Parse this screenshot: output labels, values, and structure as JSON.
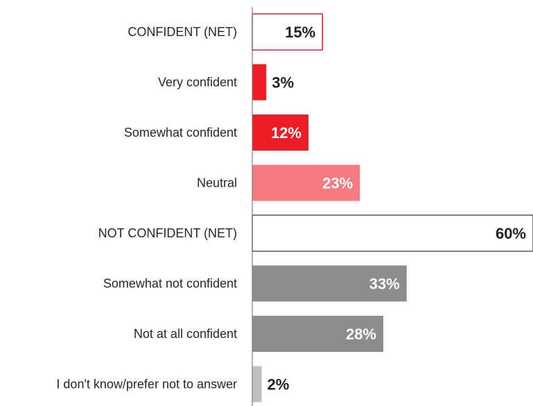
{
  "chart_data": {
    "type": "bar",
    "orientation": "horizontal",
    "categories": [
      "CONFIDENT (NET)",
      "Very confident",
      "Somewhat confident",
      "Neutral",
      "NOT CONFIDENT (NET)",
      "Somewhat not confident",
      "Not at all confident",
      "I don't know/prefer not to answer"
    ],
    "values": [
      15,
      3,
      12,
      23,
      60,
      33,
      28,
      2
    ],
    "value_labels": [
      "15%",
      "3%",
      "12%",
      "23%",
      "60%",
      "33%",
      "28%",
      "2%"
    ],
    "bar_style": [
      {
        "fill": "#ffffff",
        "stroke": "#e0202a",
        "label_color": "#222222",
        "label_position": "inside"
      },
      {
        "fill": "#ee1c25",
        "stroke": "none",
        "label_color": "#222222",
        "label_position": "outside"
      },
      {
        "fill": "#ee1c25",
        "stroke": "none",
        "label_color": "#ffffff",
        "label_position": "inside"
      },
      {
        "fill": "#f27a80",
        "stroke": "none",
        "label_color": "#ffffff",
        "label_position": "inside"
      },
      {
        "fill": "#ffffff",
        "stroke": "#555555",
        "label_color": "#222222",
        "label_position": "inside"
      },
      {
        "fill": "#8c8c8c",
        "stroke": "none",
        "label_color": "#ffffff",
        "label_position": "inside"
      },
      {
        "fill": "#8c8c8c",
        "stroke": "none",
        "label_color": "#ffffff",
        "label_position": "inside"
      },
      {
        "fill": "#bfbfbf",
        "stroke": "none",
        "label_color": "#222222",
        "label_position": "outside"
      }
    ],
    "xlim": [
      0,
      60
    ],
    "unit": "%",
    "title": "",
    "xlabel": "",
    "ylabel": "",
    "grid": false,
    "legend": "none"
  }
}
